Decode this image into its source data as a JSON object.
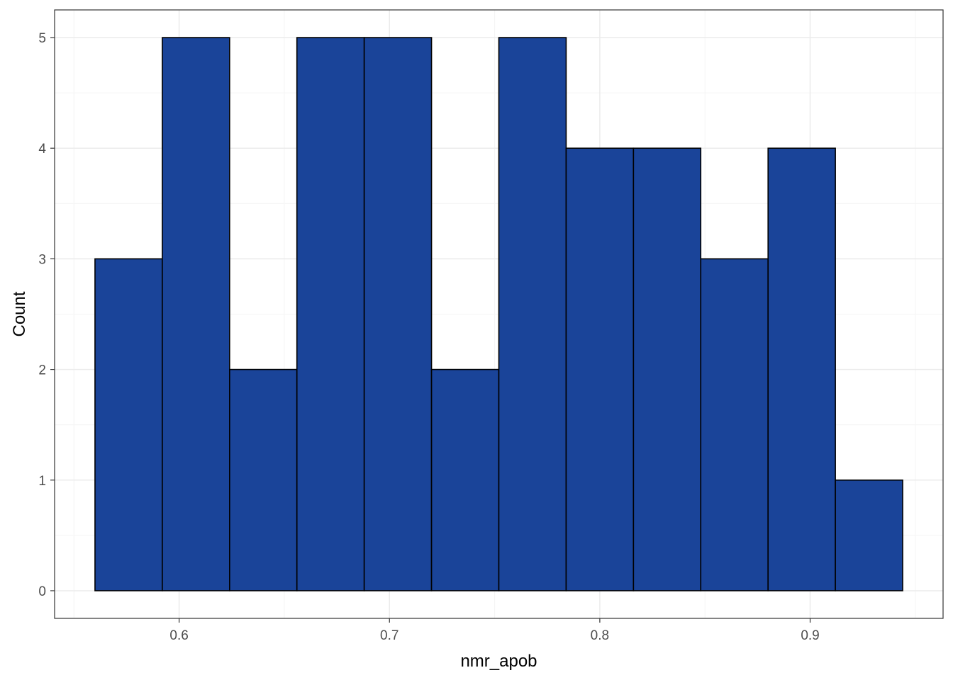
{
  "chart_data": {
    "type": "bar",
    "subtype": "histogram",
    "title": "",
    "xlabel": "nmr_apob",
    "ylabel": "Count",
    "bins": [
      {
        "x0": 0.56,
        "x1": 0.592,
        "count": 3
      },
      {
        "x0": 0.592,
        "x1": 0.624,
        "count": 5
      },
      {
        "x0": 0.624,
        "x1": 0.656,
        "count": 2
      },
      {
        "x0": 0.656,
        "x1": 0.688,
        "count": 5
      },
      {
        "x0": 0.688,
        "x1": 0.72,
        "count": 5
      },
      {
        "x0": 0.72,
        "x1": 0.752,
        "count": 2
      },
      {
        "x0": 0.752,
        "x1": 0.784,
        "count": 5
      },
      {
        "x0": 0.784,
        "x1": 0.816,
        "count": 4
      },
      {
        "x0": 0.816,
        "x1": 0.848,
        "count": 4
      },
      {
        "x0": 0.848,
        "x1": 0.88,
        "count": 3
      },
      {
        "x0": 0.88,
        "x1": 0.912,
        "count": 4
      },
      {
        "x0": 0.912,
        "x1": 0.944,
        "count": 1
      }
    ],
    "xlim": [
      0.5408,
      0.9632
    ],
    "ylim": [
      -0.25,
      5.25
    ],
    "x_ticks": [
      {
        "value": 0.6,
        "label": "0.6"
      },
      {
        "value": 0.7,
        "label": "0.7"
      },
      {
        "value": 0.8,
        "label": "0.8"
      },
      {
        "value": 0.9,
        "label": "0.9"
      }
    ],
    "x_minor_ticks": [
      0.55,
      0.65,
      0.75,
      0.85,
      0.95
    ],
    "y_ticks": [
      {
        "value": 0,
        "label": "0"
      },
      {
        "value": 1,
        "label": "1"
      },
      {
        "value": 2,
        "label": "2"
      },
      {
        "value": 3,
        "label": "3"
      },
      {
        "value": 4,
        "label": "4"
      },
      {
        "value": 5,
        "label": "5"
      }
    ],
    "y_minor_ticks": [
      0.5,
      1.5,
      2.5,
      3.5,
      4.5
    ],
    "grid": true,
    "legend": "none",
    "colors": {
      "bar_fill": "#1a4499",
      "bar_stroke": "#000000",
      "grid_major": "#ebebeb",
      "grid_minor": "#f5f5f5",
      "panel_border": "#333333",
      "background": "#ffffff"
    }
  }
}
